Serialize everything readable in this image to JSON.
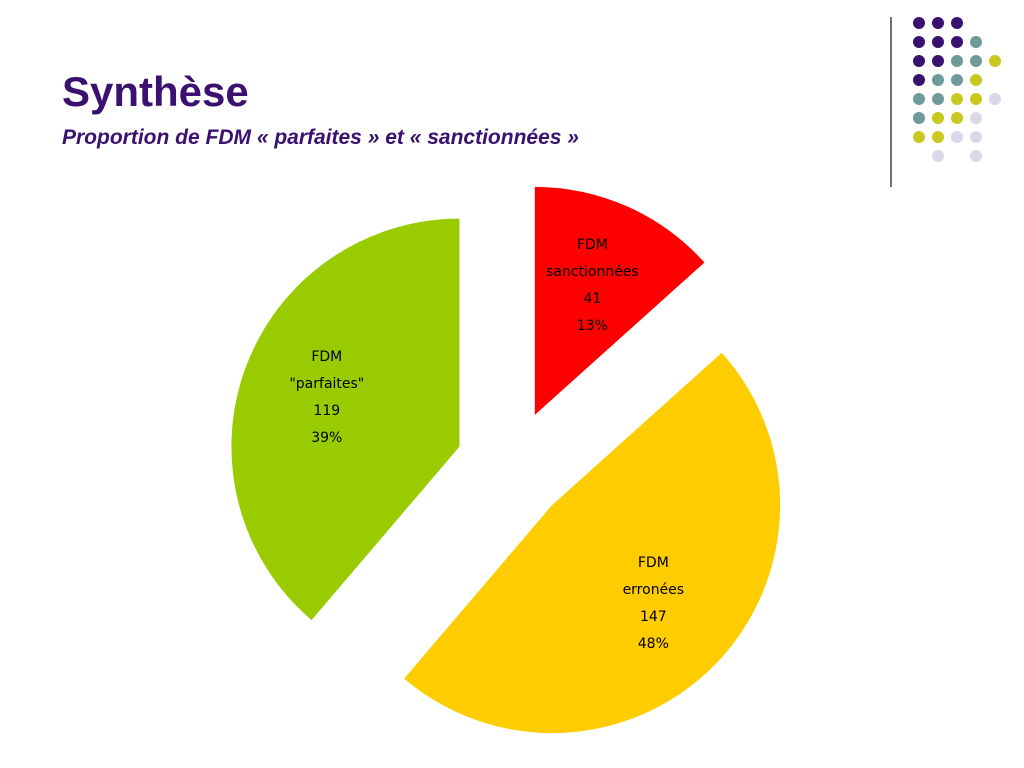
{
  "header": {
    "title": "Synthèse",
    "subtitle": "Proportion de FDM « parfaites » et « sanctionnées »"
  },
  "chart_data": {
    "type": "pie",
    "categories": [
      "FDM sanctionnées",
      "FDM erronées",
      "FDM \"parfaites\""
    ],
    "values": [
      41,
      147,
      119
    ],
    "percent_labels": [
      "13%",
      "48%",
      "39%"
    ],
    "colors": [
      "#ff0000",
      "#ffcc00",
      "#99cc00"
    ]
  }
}
